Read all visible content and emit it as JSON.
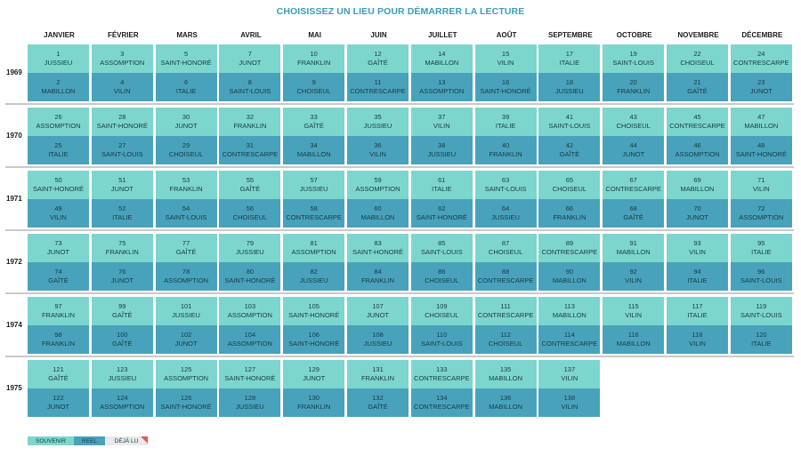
{
  "title": "CHOISISSEZ UN LIEU POUR DÉMARRER LA LECTURE",
  "months": [
    "JANVIER",
    "FÉVRIER",
    "MARS",
    "AVRIL",
    "MAI",
    "JUIN",
    "JUILLET",
    "AOÛT",
    "SEPTEMBRE",
    "OCTOBRE",
    "NOVEMBRE",
    "DÉCEMBRE"
  ],
  "years": [
    {
      "year": "1969",
      "cells": [
        {
          "top": {
            "num": "1",
            "name": "JUSSIEU"
          },
          "bottom": {
            "num": "2",
            "name": "MABILLON"
          }
        },
        {
          "top": {
            "num": "3",
            "name": "ASSOMPTION"
          },
          "bottom": {
            "num": "4",
            "name": "VILIN"
          }
        },
        {
          "top": {
            "num": "5",
            "name": "SAINT-HONORÉ"
          },
          "bottom": {
            "num": "6",
            "name": "ITALIE"
          }
        },
        {
          "top": {
            "num": "7",
            "name": "JUNOT"
          },
          "bottom": {
            "num": "8",
            "name": "SAINT-LOUIS"
          }
        },
        {
          "top": {
            "num": "10",
            "name": "FRANKLIN"
          },
          "bottom": {
            "num": "9",
            "name": "CHOISEUL"
          }
        },
        {
          "top": {
            "num": "12",
            "name": "GAÎTÉ"
          },
          "bottom": {
            "num": "11",
            "name": "CONTRESCARPE"
          }
        },
        {
          "top": {
            "num": "14",
            "name": "MABILLON"
          },
          "bottom": {
            "num": "13",
            "name": "ASSOMPTION"
          }
        },
        {
          "top": {
            "num": "15",
            "name": "VILIN"
          },
          "bottom": {
            "num": "16",
            "name": "SAINT-HONORÉ"
          }
        },
        {
          "top": {
            "num": "17",
            "name": "ITALIE"
          },
          "bottom": {
            "num": "18",
            "name": "JUSSIEU"
          }
        },
        {
          "top": {
            "num": "19",
            "name": "SAINT-LOUIS"
          },
          "bottom": {
            "num": "20",
            "name": "FRANKLIN"
          }
        },
        {
          "top": {
            "num": "22",
            "name": "CHOISEUL"
          },
          "bottom": {
            "num": "21",
            "name": "GAÎTÉ"
          }
        },
        {
          "top": {
            "num": "24",
            "name": "CONTRESCARPE"
          },
          "bottom": {
            "num": "23",
            "name": "JUNOT"
          }
        }
      ]
    },
    {
      "year": "1970",
      "cells": [
        {
          "top": {
            "num": "26",
            "name": "ASSOMPTION"
          },
          "bottom": {
            "num": "25",
            "name": "ITALIE"
          }
        },
        {
          "top": {
            "num": "28",
            "name": "SAINT-HONORÉ"
          },
          "bottom": {
            "num": "27",
            "name": "SAINT-LOUIS"
          }
        },
        {
          "top": {
            "num": "30",
            "name": "JUNOT"
          },
          "bottom": {
            "num": "29",
            "name": "CHOISEUL"
          }
        },
        {
          "top": {
            "num": "32",
            "name": "FRANKLIN"
          },
          "bottom": {
            "num": "31",
            "name": "CONTRESCARPE"
          }
        },
        {
          "top": {
            "num": "33",
            "name": "GAÎTÉ"
          },
          "bottom": {
            "num": "34",
            "name": "MABILLON"
          }
        },
        {
          "top": {
            "num": "35",
            "name": "JUSSIEU"
          },
          "bottom": {
            "num": "36",
            "name": "VILIN"
          }
        },
        {
          "top": {
            "num": "37",
            "name": "VILIN"
          },
          "bottom": {
            "num": "38",
            "name": "JUSSIEU"
          }
        },
        {
          "top": {
            "num": "39",
            "name": "ITALIE"
          },
          "bottom": {
            "num": "40",
            "name": "FRANKLIN"
          }
        },
        {
          "top": {
            "num": "41",
            "name": "SAINT-LOUIS"
          },
          "bottom": {
            "num": "42",
            "name": "GAÎTÉ"
          }
        },
        {
          "top": {
            "num": "43",
            "name": "CHOISEUL"
          },
          "bottom": {
            "num": "44",
            "name": "JUNOT"
          }
        },
        {
          "top": {
            "num": "45",
            "name": "CONTRESCARPE"
          },
          "bottom": {
            "num": "46",
            "name": "ASSOMPTION"
          }
        },
        {
          "top": {
            "num": "47",
            "name": "MABILLON"
          },
          "bottom": {
            "num": "48",
            "name": "SAINT-HONORÉ"
          }
        }
      ]
    },
    {
      "year": "1971",
      "cells": [
        {
          "top": {
            "num": "50",
            "name": "SAINT-HONORÉ"
          },
          "bottom": {
            "num": "49",
            "name": "VILIN"
          }
        },
        {
          "top": {
            "num": "51",
            "name": "JUNOT"
          },
          "bottom": {
            "num": "52",
            "name": "ITALIE"
          }
        },
        {
          "top": {
            "num": "53",
            "name": "FRANKLIN"
          },
          "bottom": {
            "num": "54",
            "name": "SAINT-LOUIS"
          }
        },
        {
          "top": {
            "num": "55",
            "name": "GAÎTÉ"
          },
          "bottom": {
            "num": "56",
            "name": "CHOISEUL"
          }
        },
        {
          "top": {
            "num": "57",
            "name": "JUSSIEU"
          },
          "bottom": {
            "num": "58",
            "name": "CONTRESCARPE"
          }
        },
        {
          "top": {
            "num": "59",
            "name": "ASSOMPTION"
          },
          "bottom": {
            "num": "60",
            "name": "MABILLON"
          }
        },
        {
          "top": {
            "num": "61",
            "name": "ITALIE"
          },
          "bottom": {
            "num": "62",
            "name": "SAINT-HONORÉ"
          }
        },
        {
          "top": {
            "num": "63",
            "name": "SAINT-LOUIS"
          },
          "bottom": {
            "num": "64",
            "name": "JUSSIEU"
          }
        },
        {
          "top": {
            "num": "65",
            "name": "CHOISEUL"
          },
          "bottom": {
            "num": "66",
            "name": "FRANKLIN"
          }
        },
        {
          "top": {
            "num": "67",
            "name": "CONTRESCARPE"
          },
          "bottom": {
            "num": "68",
            "name": "GAÎTÉ"
          }
        },
        {
          "top": {
            "num": "69",
            "name": "MABILLON"
          },
          "bottom": {
            "num": "70",
            "name": "JUNOT"
          }
        },
        {
          "top": {
            "num": "71",
            "name": "VILIN"
          },
          "bottom": {
            "num": "72",
            "name": "ASSOMPTION"
          }
        }
      ]
    },
    {
      "year": "1972",
      "cells": [
        {
          "top": {
            "num": "73",
            "name": "JUNOT"
          },
          "bottom": {
            "num": "74",
            "name": "GAÎTÉ"
          }
        },
        {
          "top": {
            "num": "75",
            "name": "FRANKLIN"
          },
          "bottom": {
            "num": "76",
            "name": "JUNOT"
          }
        },
        {
          "top": {
            "num": "77",
            "name": "GAÎTÉ"
          },
          "bottom": {
            "num": "78",
            "name": "ASSOMPTION"
          }
        },
        {
          "top": {
            "num": "79",
            "name": "JUSSIEU"
          },
          "bottom": {
            "num": "80",
            "name": "SAINT-HONORÉ"
          }
        },
        {
          "top": {
            "num": "81",
            "name": "ASSOMPTION"
          },
          "bottom": {
            "num": "82",
            "name": "JUSSIEU"
          }
        },
        {
          "top": {
            "num": "83",
            "name": "SAINT-HONORÉ"
          },
          "bottom": {
            "num": "84",
            "name": "FRANKLIN"
          }
        },
        {
          "top": {
            "num": "85",
            "name": "SAINT-LOUIS"
          },
          "bottom": {
            "num": "86",
            "name": "CHOISEUL"
          }
        },
        {
          "top": {
            "num": "87",
            "name": "CHOISEUL"
          },
          "bottom": {
            "num": "88",
            "name": "CONTRESCARPE"
          }
        },
        {
          "top": {
            "num": "89",
            "name": "CONTRESCARPE"
          },
          "bottom": {
            "num": "90",
            "name": "MABILLON"
          }
        },
        {
          "top": {
            "num": "91",
            "name": "MABILLON"
          },
          "bottom": {
            "num": "92",
            "name": "VILIN"
          }
        },
        {
          "top": {
            "num": "93",
            "name": "VILIN"
          },
          "bottom": {
            "num": "94",
            "name": "ITALIE"
          }
        },
        {
          "top": {
            "num": "95",
            "name": "ITALIE"
          },
          "bottom": {
            "num": "96",
            "name": "SAINT-LOUIS"
          }
        }
      ]
    },
    {
      "year": "1974",
      "cells": [
        {
          "top": {
            "num": "97",
            "name": "FRANKLIN"
          },
          "bottom": {
            "num": "98",
            "name": "FRANKLIN"
          }
        },
        {
          "top": {
            "num": "99",
            "name": "GAÎTÉ"
          },
          "bottom": {
            "num": "100",
            "name": "GAÎTÉ"
          }
        },
        {
          "top": {
            "num": "101",
            "name": "JUSSIEU"
          },
          "bottom": {
            "num": "102",
            "name": "JUNOT"
          }
        },
        {
          "top": {
            "num": "103",
            "name": "ASSOMPTION"
          },
          "bottom": {
            "num": "104",
            "name": "ASSOMPTION"
          }
        },
        {
          "top": {
            "num": "105",
            "name": "SAINT-HONORÉ"
          },
          "bottom": {
            "num": "106",
            "name": "SAINT-HONORÉ"
          }
        },
        {
          "top": {
            "num": "107",
            "name": "JUNOT"
          },
          "bottom": {
            "num": "108",
            "name": "JUSSIEU"
          }
        },
        {
          "top": {
            "num": "109",
            "name": "CHOISEUL"
          },
          "bottom": {
            "num": "110",
            "name": "SAINT-LOUIS"
          }
        },
        {
          "top": {
            "num": "111",
            "name": "CONTRESCARPE"
          },
          "bottom": {
            "num": "112",
            "name": "CHOISEUL"
          }
        },
        {
          "top": {
            "num": "113",
            "name": "MABILLON"
          },
          "bottom": {
            "num": "114",
            "name": "CONTRESCARPE"
          }
        },
        {
          "top": {
            "num": "115",
            "name": "VILIN"
          },
          "bottom": {
            "num": "116",
            "name": "MABILLON"
          }
        },
        {
          "top": {
            "num": "117",
            "name": "ITALIE"
          },
          "bottom": {
            "num": "118",
            "name": "VILIN"
          }
        },
        {
          "top": {
            "num": "119",
            "name": "SAINT-LOUIS"
          },
          "bottom": {
            "num": "120",
            "name": "ITALIE"
          }
        }
      ]
    },
    {
      "year": "1975",
      "cells": [
        {
          "top": {
            "num": "121",
            "name": "GAÎTÉ"
          },
          "bottom": {
            "num": "122",
            "name": "JUNOT"
          }
        },
        {
          "top": {
            "num": "123",
            "name": "JUSSIEU"
          },
          "bottom": {
            "num": "124",
            "name": "ASSOMPTION"
          }
        },
        {
          "top": {
            "num": "125",
            "name": "ASSOMPTION"
          },
          "bottom": {
            "num": "126",
            "name": "SAINT-HONORÉ"
          }
        },
        {
          "top": {
            "num": "127",
            "name": "SAINT-HONORÉ"
          },
          "bottom": {
            "num": "128",
            "name": "JUSSIEU"
          }
        },
        {
          "top": {
            "num": "129",
            "name": "JUNOT"
          },
          "bottom": {
            "num": "130",
            "name": "FRANKLIN"
          }
        },
        {
          "top": {
            "num": "131",
            "name": "FRANKLIN"
          },
          "bottom": {
            "num": "132",
            "name": "GAÎTÉ"
          }
        },
        {
          "top": {
            "num": "133",
            "name": "CONTRESCARPE"
          },
          "bottom": {
            "num": "134",
            "name": "CONTRESCARPE"
          }
        },
        {
          "top": {
            "num": "135",
            "name": "MABILLON"
          },
          "bottom": {
            "num": "136",
            "name": "MABILLON"
          }
        },
        {
          "top": {
            "num": "137",
            "name": "VILIN"
          },
          "bottom": {
            "num": "138",
            "name": "VILIN"
          }
        }
      ]
    }
  ],
  "legend": {
    "souvenir": "SOUVENIR",
    "reel": "REEL",
    "deja_lu": "DÉJÀ LU"
  },
  "colors": {
    "title": "#3c9cb8",
    "souvenir": "#7dd6cd",
    "reel": "#49a2bc",
    "deja_lu": "#e9e9e9",
    "deja_lu_corner": "#e05a4d"
  }
}
